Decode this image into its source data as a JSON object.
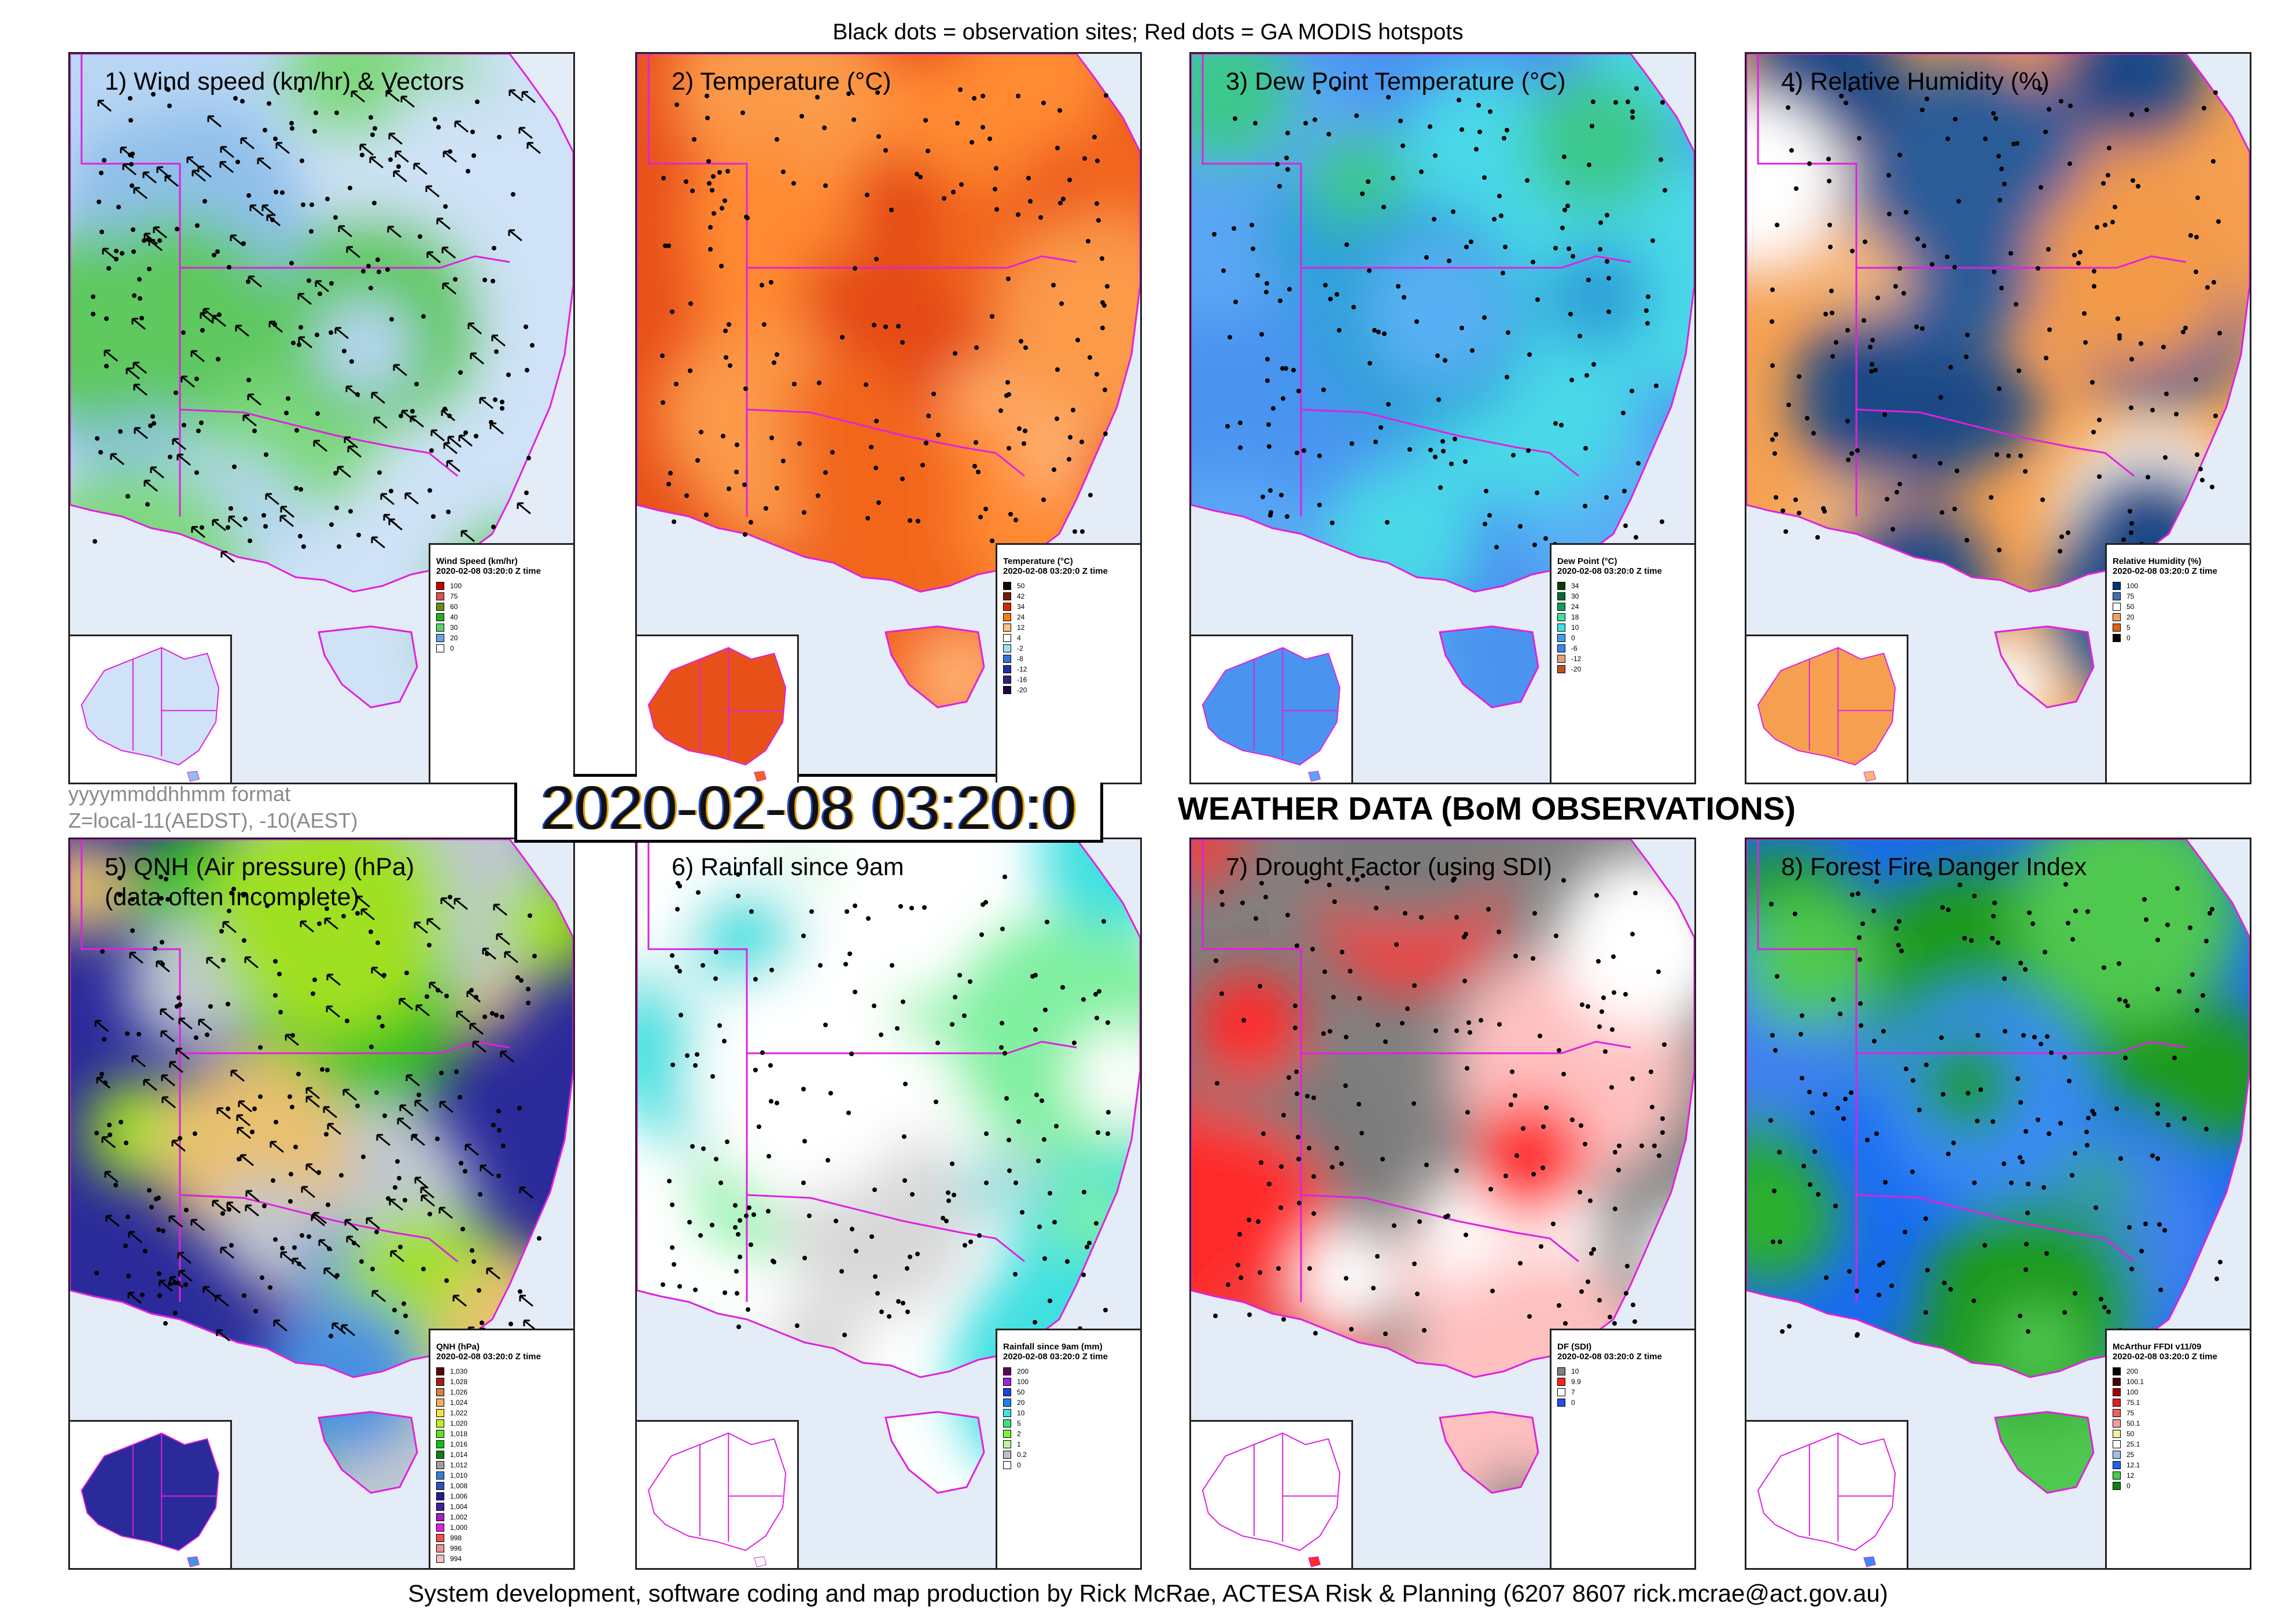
{
  "header": {
    "caption": "Black dots = observation sites; Red dots = GA MODIS hotspots"
  },
  "footer": {
    "caption": "System development, software coding and map production by Rick McRae, ACTESA Risk & Planning (6207 8607 rick.mcrae@act.gov.au)"
  },
  "main_title": "WEATHER DATA (BoM OBSERVATIONS)",
  "timestamp": "2020-02-08 03:20:0",
  "format_note": {
    "line1": "yyyymmddhhmm format",
    "line2": "Z=local-11(AEDST), -10(AEST)"
  },
  "colors": {
    "state_border": "#e020e0",
    "ocean": "#e4ecf7",
    "frame": "#222222"
  },
  "panels": [
    {
      "title": "1) Wind speed (km/hr) & Vectors",
      "subtitle": "",
      "legend_title": "Wind Speed (km/hr)",
      "legend_time": "2020-02-08 03:20:0 Z time",
      "legend": [
        {
          "label": "100",
          "color": "#c00000"
        },
        {
          "label": "75",
          "color": "#e05050"
        },
        {
          "label": "60",
          "color": "#6a8a10"
        },
        {
          "label": "40",
          "color": "#1fb01f"
        },
        {
          "label": "30",
          "color": "#60d060"
        },
        {
          "label": "20",
          "color": "#6fa0e0"
        },
        {
          "label": "0",
          "color": "#ffffff"
        }
      ],
      "palette": [
        "#cfe2f7",
        "#8fbfea",
        "#7fd87f",
        "#cfe2f7",
        "#5fc85f",
        "#b8d6f4"
      ]
    },
    {
      "title": "2) Temperature (°C)",
      "subtitle": "",
      "legend_title": "Temperature (°C)",
      "legend_time": "2020-02-08 03:20:0 Z time",
      "legend": [
        {
          "label": "50",
          "color": "#1a0000"
        },
        {
          "label": "42",
          "color": "#7a1a00"
        },
        {
          "label": "34",
          "color": "#d02a00"
        },
        {
          "label": "24",
          "color": "#ff7a10"
        },
        {
          "label": "12",
          "color": "#ffc080"
        },
        {
          "label": "4",
          "color": "#ffffff"
        },
        {
          "label": "-2",
          "color": "#a0e0f0"
        },
        {
          "label": "-8",
          "color": "#3a70e0"
        },
        {
          "label": "-12",
          "color": "#2030a0"
        },
        {
          "label": "-16",
          "color": "#302080"
        },
        {
          "label": "-20",
          "color": "#200040"
        }
      ],
      "palette": [
        "#e8501a",
        "#f2661e",
        "#ff8a30",
        "#fb9a4a",
        "#ffb070",
        "#e44a14"
      ]
    },
    {
      "title": "3) Dew Point Temperature (°C)",
      "subtitle": "",
      "legend_title": "Dew Point (°C)",
      "legend_time": "2020-02-08 03:20:0 Z time",
      "legend": [
        {
          "label": "34",
          "color": "#004000"
        },
        {
          "label": "30",
          "color": "#007030"
        },
        {
          "label": "24",
          "color": "#10a050"
        },
        {
          "label": "18",
          "color": "#40e0a0"
        },
        {
          "label": "10",
          "color": "#40e0e0"
        },
        {
          "label": "0",
          "color": "#40a0f0"
        },
        {
          "label": "-6",
          "color": "#4080f0"
        },
        {
          "label": "-12",
          "color": "#e0a080"
        },
        {
          "label": "-20",
          "color": "#c05020"
        }
      ],
      "palette": [
        "#4a94f0",
        "#5aa6f4",
        "#4ad8e8",
        "#3cc88c",
        "#58b0f4",
        "#2ea0d8"
      ]
    },
    {
      "title": "4) Relative Humidity (%)",
      "subtitle": "",
      "legend_title": "Relative Humidity (%)",
      "legend_time": "2020-02-08 03:20:0 Z time",
      "legend": [
        {
          "label": "100",
          "color": "#003080"
        },
        {
          "label": "75",
          "color": "#4070b0"
        },
        {
          "label": "50",
          "color": "#ffffff"
        },
        {
          "label": "20",
          "color": "#f0a060"
        },
        {
          "label": "5",
          "color": "#e06010"
        },
        {
          "label": "0",
          "color": "#000000"
        }
      ],
      "palette": [
        "#f5a050",
        "#f7b77a",
        "#ffffff",
        "#1e4a86",
        "#2c5c98",
        "#f39a48"
      ]
    },
    {
      "title": "5) QNH (Air pressure) (hPa)",
      "subtitle": "(data often incomplete)",
      "legend_title": "QNH (hPa)",
      "legend_time": "2020-02-08 03:20:0 Z time",
      "legend": [
        {
          "label": "1,030",
          "color": "#600000"
        },
        {
          "label": "1,028",
          "color": "#a02020"
        },
        {
          "label": "1,026",
          "color": "#d08040"
        },
        {
          "label": "1,024",
          "color": "#f0b060"
        },
        {
          "label": "1,022",
          "color": "#f8e040"
        },
        {
          "label": "1,020",
          "color": "#c0f020"
        },
        {
          "label": "1,018",
          "color": "#60e020"
        },
        {
          "label": "1,016",
          "color": "#10c010"
        },
        {
          "label": "1,014",
          "color": "#108010"
        },
        {
          "label": "1,012",
          "color": "#a0a0a0"
        },
        {
          "label": "1,010",
          "color": "#3080e0"
        },
        {
          "label": "1,008",
          "color": "#3050c0"
        },
        {
          "label": "1,006",
          "color": "#202090"
        },
        {
          "label": "1,004",
          "color": "#4020a0"
        },
        {
          "label": "1,002",
          "color": "#a020c0"
        },
        {
          "label": "1,000",
          "color": "#e020e0"
        },
        {
          "label": "998",
          "color": "#f05050"
        },
        {
          "label": "996",
          "color": "#f09090"
        },
        {
          "label": "994",
          "color": "#f0c0c0"
        }
      ],
      "palette": [
        "#2a2a9a",
        "#4a90e0",
        "#c0c8d0",
        "#30c020",
        "#a0e020",
        "#e8c070"
      ]
    },
    {
      "title": "6) Rainfall since 9am",
      "subtitle": "",
      "legend_title": "Rainfall since 9am (mm)",
      "legend_time": "2020-02-08 03:20:0 Z time",
      "legend": [
        {
          "label": "200",
          "color": "#600060"
        },
        {
          "label": "100",
          "color": "#a020e0"
        },
        {
          "label": "50",
          "color": "#2040e0"
        },
        {
          "label": "20",
          "color": "#2080f0"
        },
        {
          "label": "10",
          "color": "#40e0e0"
        },
        {
          "label": "5",
          "color": "#40e080"
        },
        {
          "label": "2",
          "color": "#80f040"
        },
        {
          "label": "1",
          "color": "#c0f0a0"
        },
        {
          "label": "0.2",
          "color": "#c0c0c0"
        },
        {
          "label": "0",
          "color": "#ffffff"
        }
      ],
      "palette": [
        "#ffffff",
        "#ffffff",
        "#d8d8d8",
        "#80f0a0",
        "#40e0e0",
        "#ffffff"
      ]
    },
    {
      "title": "7) Drought Factor (using SDI)",
      "subtitle": "",
      "legend_title": "DF (SDI)",
      "legend_time": "2020-02-08 03:20:0 Z time",
      "legend": [
        {
          "label": "10",
          "color": "#808080"
        },
        {
          "label": "9.9",
          "color": "#ff2020"
        },
        {
          "label": "7",
          "color": "#ffffff"
        },
        {
          "label": "0",
          "color": "#2050e0"
        }
      ],
      "palette": [
        "#808080",
        "#ff2a2a",
        "#ffffff",
        "#7a7a7a",
        "#f04040",
        "#ffc0c0"
      ]
    },
    {
      "title": "8) Forest Fire Danger Index",
      "subtitle": "",
      "legend_title": "McArthur FFDI v11/09",
      "legend_time": "2020-02-08 03:20:0 Z time",
      "legend": [
        {
          "label": "200",
          "color": "#000000"
        },
        {
          "label": "100.1",
          "color": "#500000"
        },
        {
          "label": "100",
          "color": "#a00000"
        },
        {
          "label": "75.1",
          "color": "#e02020"
        },
        {
          "label": "75",
          "color": "#f06060"
        },
        {
          "label": "50.1",
          "color": "#f0a0a0"
        },
        {
          "label": "50",
          "color": "#f0f0a0"
        },
        {
          "label": "25.1",
          "color": "#ffffff"
        },
        {
          "label": "25",
          "color": "#a0c0f0"
        },
        {
          "label": "12.1",
          "color": "#2060f0"
        },
        {
          "label": "12",
          "color": "#40d040"
        },
        {
          "label": "0",
          "color": "#108010"
        }
      ],
      "palette": [
        "#1a6cf0",
        "#3a8af8",
        "#2cb02c",
        "#50c850",
        "#1e9a1e",
        "#4080f0"
      ]
    }
  ]
}
